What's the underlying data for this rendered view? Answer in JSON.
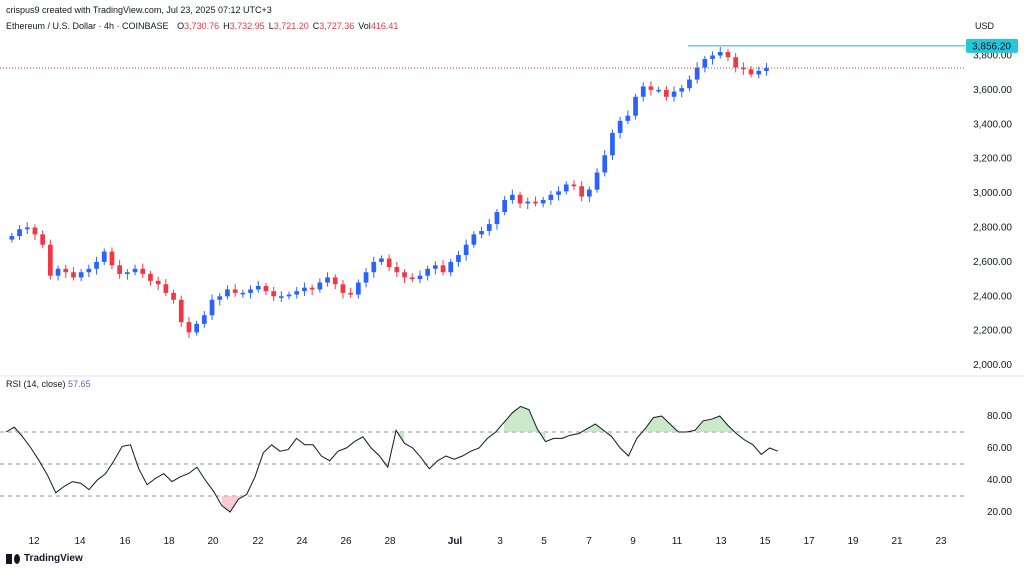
{
  "header": {
    "credit": "crispus9 created with TradingView.com, Jul 23, 2025 07:12 UTC+3",
    "symbol": "Ethereum / U.S. Dollar · 4h · COINBASE",
    "ohlc": [
      {
        "k": "O",
        "v": "3,730.76"
      },
      {
        "k": "H",
        "v": "3,732.95"
      },
      {
        "k": "L",
        "v": "3,721.20"
      },
      {
        "k": "C",
        "v": "3,727.36"
      },
      {
        "k": "Vol",
        "v": "416.41"
      }
    ],
    "currency": "USD"
  },
  "rsi_label": {
    "name": "RSI (14, close)",
    "value": "57.65"
  },
  "brand": "TradingView",
  "colors": {
    "up": "#2962ff",
    "down": "#f23645",
    "rsi": "#131722",
    "level_line": "#26c6da",
    "price_badge": "#26c6da"
  },
  "chart_data": [
    {
      "type": "candlestick",
      "title": "Ethereum / U.S. Dollar · 4h · COINBASE",
      "x_tick_labels": [
        "12",
        "14",
        "16",
        "18",
        "20",
        "22",
        "24",
        "26",
        "28",
        "Jul",
        "3",
        "5",
        "7",
        "9",
        "11",
        "13",
        "15",
        "17",
        "19",
        "21",
        "23"
      ],
      "y_tick_labels": [
        "2,000.00",
        "2,200.00",
        "2,400.00",
        "2,600.00",
        "2,800.00",
        "3,000.00",
        "3,200.00",
        "3,400.00",
        "3,600.00",
        "3,800.00"
      ],
      "y_ticks": [
        2000,
        2200,
        2400,
        2600,
        2800,
        3000,
        3200,
        3400,
        3600,
        3800
      ],
      "ylim": [
        1960,
        3890
      ],
      "resistance_level": {
        "value": 3856.2,
        "label": "3,856.20"
      },
      "current_price": 3727.36,
      "series_close": [
        2750,
        2790,
        2800,
        2760,
        2700,
        2520,
        2560,
        2540,
        2510,
        2540,
        2560,
        2600,
        2660,
        2580,
        2530,
        2540,
        2560,
        2530,
        2490,
        2470,
        2420,
        2380,
        2250,
        2190,
        2240,
        2290,
        2380,
        2400,
        2440,
        2420,
        2420,
        2440,
        2460,
        2430,
        2400,
        2400,
        2410,
        2430,
        2450,
        2440,
        2480,
        2510,
        2470,
        2420,
        2410,
        2480,
        2540,
        2600,
        2620,
        2570,
        2540,
        2510,
        2500,
        2520,
        2560,
        2580,
        2540,
        2600,
        2640,
        2700,
        2760,
        2780,
        2820,
        2890,
        2960,
        2990,
        2940,
        2950,
        2940,
        2960,
        2990,
        3010,
        3050,
        3040,
        2980,
        3020,
        3120,
        3220,
        3350,
        3420,
        3450,
        3560,
        3620,
        3600,
        3600,
        3560,
        3590,
        3610,
        3660,
        3730,
        3780,
        3800,
        3820,
        3790,
        3730,
        3720,
        3690,
        3710,
        3727
      ],
      "x_per_candle": 7.7
    },
    {
      "type": "line",
      "title": "RSI (14, close)",
      "y_tick_labels": [
        "20.00",
        "40.00",
        "60.00",
        "80.00"
      ],
      "y_ticks": [
        20,
        40,
        60,
        80
      ],
      "ylim": [
        10,
        95
      ],
      "levels": [
        70,
        50,
        30
      ],
      "current_value": 57.65,
      "values": [
        70,
        73,
        67,
        60,
        52,
        43,
        32,
        36,
        39,
        38,
        34,
        40,
        44,
        52,
        61,
        62,
        47,
        37,
        41,
        44,
        39,
        42,
        44,
        48,
        40,
        33,
        24,
        20,
        28,
        31,
        42,
        57,
        62,
        58,
        59,
        66,
        62,
        62,
        55,
        52,
        58,
        60,
        64,
        67,
        60,
        55,
        48,
        71,
        63,
        60,
        54,
        47,
        52,
        55,
        53,
        55,
        58,
        60,
        66,
        70,
        76,
        82,
        86,
        84,
        72,
        64,
        66,
        66,
        68,
        69,
        72,
        75,
        71,
        67,
        60,
        55,
        66,
        72,
        79,
        80,
        75,
        70,
        70,
        71,
        77,
        78,
        80,
        74,
        69,
        65,
        62,
        56,
        60,
        58
      ],
      "x_step": 8.3
    }
  ]
}
